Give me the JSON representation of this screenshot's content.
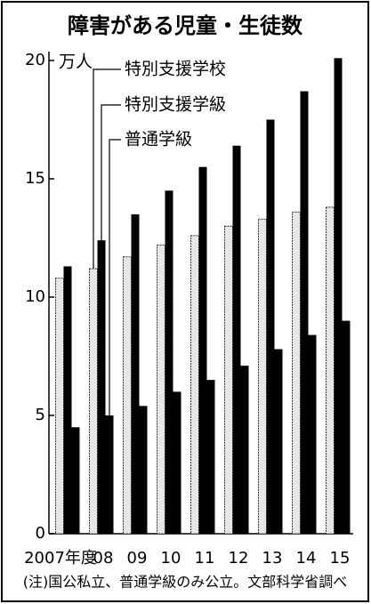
{
  "chart_data": {
    "type": "bar",
    "title": "障害がある児童・生徒数",
    "y_unit": "万人",
    "note": "(注)国公私立、普通学級のみ公立。文部科学省調べ",
    "categories": [
      "2007年度",
      "08",
      "09",
      "10",
      "11",
      "12",
      "13",
      "14",
      "15"
    ],
    "series": [
      {
        "name": "特別支援学校",
        "color": "#e6e6e6",
        "values": [
          10.8,
          11.2,
          11.7,
          12.2,
          12.6,
          13.0,
          13.3,
          13.6,
          13.8
        ]
      },
      {
        "name": "特別支援学級",
        "color": "#000000",
        "values": [
          11.3,
          12.4,
          13.5,
          14.5,
          15.5,
          16.4,
          17.5,
          18.7,
          20.1
        ]
      },
      {
        "name": "普通学級",
        "color": "#000000",
        "values": [
          4.5,
          5.0,
          5.4,
          6.0,
          6.5,
          7.1,
          7.8,
          8.4,
          9.0
        ]
      }
    ],
    "ylim": [
      0,
      20
    ],
    "yticks": [
      0,
      5,
      10,
      15,
      20
    ]
  }
}
